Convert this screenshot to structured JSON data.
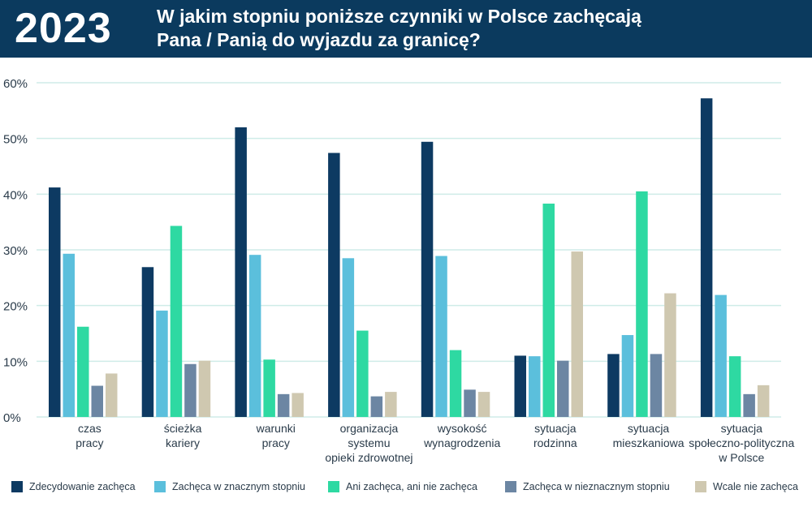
{
  "header": {
    "year": "2023",
    "title_line1": "W jakim stopniu poniższe czynniki w Polsce zachęcają",
    "title_line2": "Pana / Panią do wyjazdu za granicę?"
  },
  "colors": {
    "header_bg": "#0b3a5e",
    "grid": "#cfece8",
    "axis_text": "#2a3b4a"
  },
  "chart_data": {
    "type": "bar",
    "categories": [
      [
        "czas",
        "pracy"
      ],
      [
        "ścieżka",
        "kariery"
      ],
      [
        "warunki",
        "pracy"
      ],
      [
        "organizacja",
        "systemu",
        "opieki zdrowotnej"
      ],
      [
        "wysokość",
        "wynagrodzenia"
      ],
      [
        "sytuacja",
        "rodzinna"
      ],
      [
        "sytuacja",
        "mieszkaniowa"
      ],
      [
        "sytuacja",
        "społeczno-polityczna",
        "w Polsce"
      ]
    ],
    "series": [
      {
        "name": "Zdecydowanie zachęca",
        "color": "#0d3a62",
        "values": [
          41.2,
          26.9,
          52.0,
          47.4,
          49.4,
          11.0,
          11.3,
          57.2
        ]
      },
      {
        "name": "Zachęca w znacznym stopniu",
        "color": "#5bbfdc",
        "values": [
          29.3,
          19.1,
          29.1,
          28.5,
          28.9,
          10.9,
          14.7,
          21.9
        ]
      },
      {
        "name": "Ani zachęca, ani nie zachęca",
        "color": "#2ed9a2",
        "values": [
          16.2,
          34.3,
          10.3,
          15.5,
          12.0,
          38.3,
          40.5,
          10.9
        ]
      },
      {
        "name": "Zachęca w nieznacznym stopniu",
        "color": "#6c86a3",
        "values": [
          5.6,
          9.5,
          4.1,
          3.7,
          4.9,
          10.1,
          11.3,
          4.1
        ]
      },
      {
        "name": "Wcale nie zachęca",
        "color": "#cfc8b0",
        "values": [
          7.8,
          10.1,
          4.3,
          4.5,
          4.5,
          29.7,
          22.2,
          5.7
        ]
      }
    ],
    "y_ticks": [
      "0%",
      "10%",
      "20%",
      "30%",
      "40%",
      "50%",
      "60%"
    ],
    "ylim": [
      0,
      60
    ],
    "grid": true,
    "legend_position": "bottom"
  }
}
